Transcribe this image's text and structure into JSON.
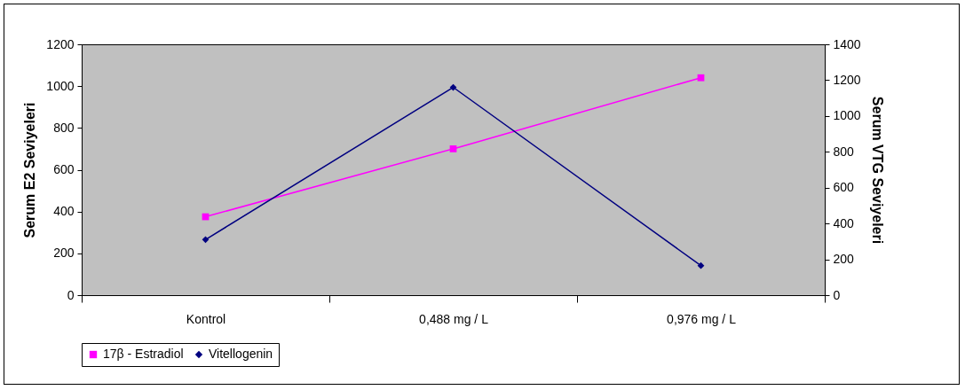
{
  "chart_data": {
    "type": "line",
    "ylabel": "Serum  E2 Seviyeleri",
    "y2label": "Serum  VTG Seviyeleri",
    "categories": [
      "Kontrol",
      "0,488 mg / L",
      "0,976 mg / L"
    ],
    "series": [
      {
        "name": "17β - Estradiol",
        "color": "#ff00ff",
        "marker": "square",
        "values": [
          375,
          700,
          1040
        ]
      },
      {
        "name": "Vitellogenin",
        "color": "#000080",
        "marker": "diamond",
        "axis": "y2",
        "values": [
          310,
          1160,
          165
        ]
      }
    ],
    "ylim": [
      0,
      1200
    ],
    "yticks": [
      0,
      200,
      400,
      600,
      800,
      1000,
      1200
    ],
    "y2lim": [
      0,
      1400
    ],
    "y2ticks": [
      0,
      200,
      400,
      600,
      800,
      1000,
      1200,
      1400
    ],
    "grid": false,
    "legend": "bottom"
  }
}
